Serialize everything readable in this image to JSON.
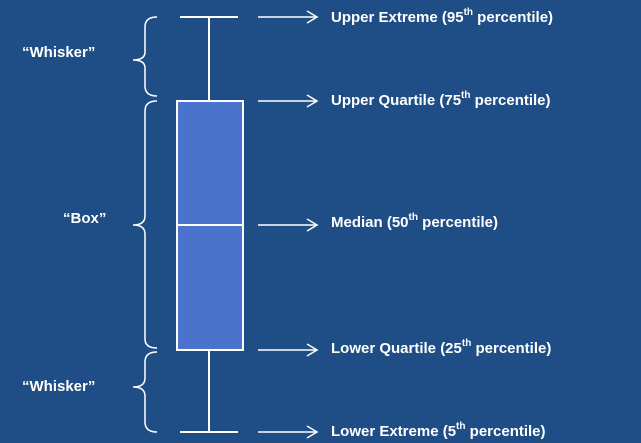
{
  "colors": {
    "background": "#1f4e86",
    "box_fill": "#4a74cc",
    "stroke": "#ffffff",
    "text": "#ffffff"
  },
  "side_labels": {
    "top_whisker": "“Whisker”",
    "box": "“Box”",
    "bottom_whisker": "“Whisker”"
  },
  "annotations": [
    {
      "name": "upper-extreme",
      "text_before": "Upper Extreme (95",
      "sup": "th",
      "text_after": " percentile)"
    },
    {
      "name": "upper-quartile",
      "text_before": "Upper Quartile (75",
      "sup": "th",
      "text_after": " percentile)"
    },
    {
      "name": "median",
      "text_before": "Median (50",
      "sup": "th",
      "text_after": " percentile)"
    },
    {
      "name": "lower-quartile",
      "text_before": "Lower Quartile (25",
      "sup": "th",
      "text_after": " percentile)"
    },
    {
      "name": "lower-extreme",
      "text_before": "Lower Extreme (5",
      "sup": "th",
      "text_after": " percentile)"
    }
  ]
}
